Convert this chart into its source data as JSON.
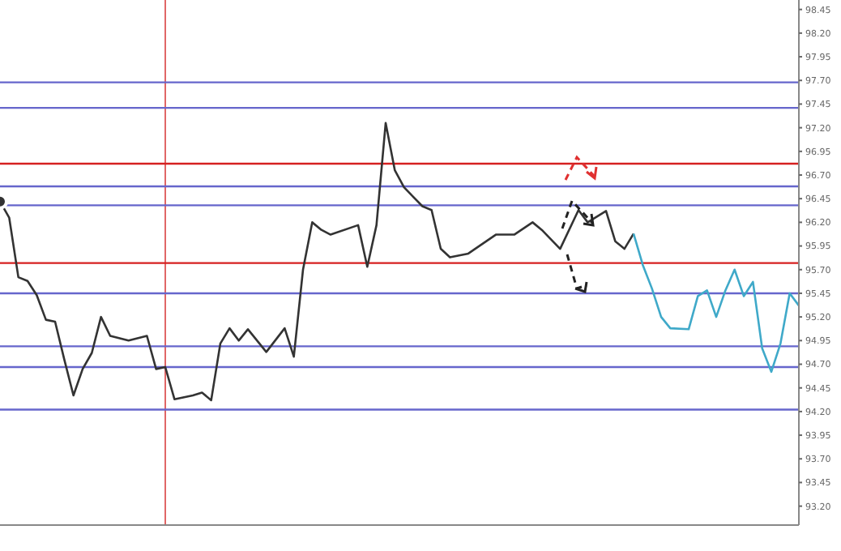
{
  "chart_data": {
    "type": "line",
    "categories": [
      null,
      null,
      null,
      null,
      null,
      null,
      null,
      null,
      null,
      null,
      null,
      null,
      null,
      null,
      null,
      null,
      null,
      null,
      null,
      null,
      null,
      null,
      null,
      null,
      null,
      null,
      null,
      null,
      null,
      null,
      null,
      null,
      null,
      null,
      null,
      null,
      null,
      null,
      null,
      null,
      null,
      null,
      null,
      null,
      null,
      null,
      null,
      null,
      null,
      null,
      null,
      null,
      null,
      null,
      null,
      null,
      null,
      null,
      null,
      null,
      null,
      null,
      null,
      null,
      null,
      null,
      null,
      null,
      null,
      null,
      null,
      null,
      null,
      null,
      null,
      null,
      null,
      null,
      null,
      null,
      null,
      null,
      null,
      null,
      null,
      null,
      null,
      null
    ],
    "series": [
      {
        "color": "#333333",
        "values": [
          96.42,
          96.25,
          95.62,
          95.58,
          95.43,
          95.17,
          95.15,
          94.75,
          94.37,
          94.65,
          94.82,
          95.2,
          95.0,
          null,
          94.95,
          null,
          95.0,
          94.65,
          94.67,
          94.33,
          null,
          94.37,
          94.4,
          94.32,
          94.92,
          95.08,
          94.95,
          95.07,
          null,
          94.83,
          null,
          95.08,
          94.78,
          95.7,
          96.2,
          96.12,
          96.07,
          null,
          null,
          96.17,
          95.73,
          96.17,
          97.25,
          96.75,
          96.57,
          null,
          96.37,
          96.33,
          95.92,
          95.83,
          null,
          95.87,
          null,
          null,
          96.07,
          null,
          96.07,
          null,
          96.2,
          96.12,
          null,
          95.92,
          null,
          96.33,
          96.2,
          null,
          96.32,
          96.0,
          95.92,
          96.08,
          null,
          null,
          null,
          null,
          null,
          null,
          null,
          null,
          null,
          null,
          null,
          null,
          null,
          null,
          null,
          null,
          null,
          null
        ]
      },
      {
        "color": "#3fa9c9",
        "values": [
          null,
          null,
          null,
          null,
          null,
          null,
          null,
          null,
          null,
          null,
          null,
          null,
          null,
          null,
          null,
          null,
          null,
          null,
          null,
          null,
          null,
          null,
          null,
          null,
          null,
          null,
          null,
          null,
          null,
          null,
          null,
          null,
          null,
          null,
          null,
          null,
          null,
          null,
          null,
          null,
          null,
          null,
          null,
          null,
          null,
          null,
          null,
          null,
          null,
          null,
          null,
          null,
          null,
          null,
          null,
          null,
          null,
          null,
          null,
          null,
          null,
          null,
          null,
          null,
          null,
          null,
          null,
          null,
          null,
          96.08,
          95.75,
          95.5,
          95.2,
          95.08,
          null,
          95.07,
          95.42,
          95.48,
          95.2,
          95.48,
          95.7,
          95.42,
          95.57,
          94.87,
          94.62,
          94.92,
          95.45,
          95.32
        ]
      }
    ],
    "ylim": [
      93.0,
      98.55
    ],
    "yticks": [
      98.45,
      {
        "value": 98.2,
        "label": "98.20"
      },
      97.95,
      {
        "value": 97.7,
        "label": "97.70"
      },
      97.45,
      {
        "value": 97.2,
        "label": "97.20"
      },
      96.95,
      {
        "value": 96.7,
        "label": "96.70"
      },
      96.45,
      {
        "value": 96.2,
        "label": "96.20"
      },
      95.95,
      {
        "value": 95.7,
        "label": "95.70"
      },
      95.45,
      {
        "value": 95.2,
        "label": "95.20"
      },
      94.95,
      {
        "value": 94.7,
        "label": "94.70"
      },
      94.45,
      {
        "value": 94.2,
        "label": "94.20"
      },
      93.95,
      {
        "value": 93.7,
        "label": "93.70"
      },
      93.45,
      {
        "value": 93.2,
        "label": "93.20"
      }
    ],
    "ref_lines": [
      {
        "axis": "y",
        "value": 97.68,
        "color": "#6666cc"
      },
      {
        "axis": "y",
        "value": 97.41,
        "color": "#6666cc"
      },
      {
        "axis": "y",
        "value": 96.58,
        "color": "#6666cc"
      },
      {
        "axis": "y",
        "value": 96.38,
        "color": "#6666cc"
      },
      {
        "axis": "y",
        "value": 95.45,
        "color": "#6666cc"
      },
      {
        "axis": "y",
        "value": 94.89,
        "color": "#6666cc"
      },
      {
        "axis": "y",
        "value": 94.67,
        "color": "#6666cc"
      },
      {
        "axis": "y",
        "value": 94.22,
        "color": "#6666cc"
      },
      {
        "axis": "y",
        "value": 95.77,
        "color": "#d62020"
      },
      {
        "axis": "y",
        "value": 96.82,
        "color": "#d62020"
      }
    ],
    "tick_labels": "y",
    "marker": "none",
    "line_style": "solid"
  }
}
